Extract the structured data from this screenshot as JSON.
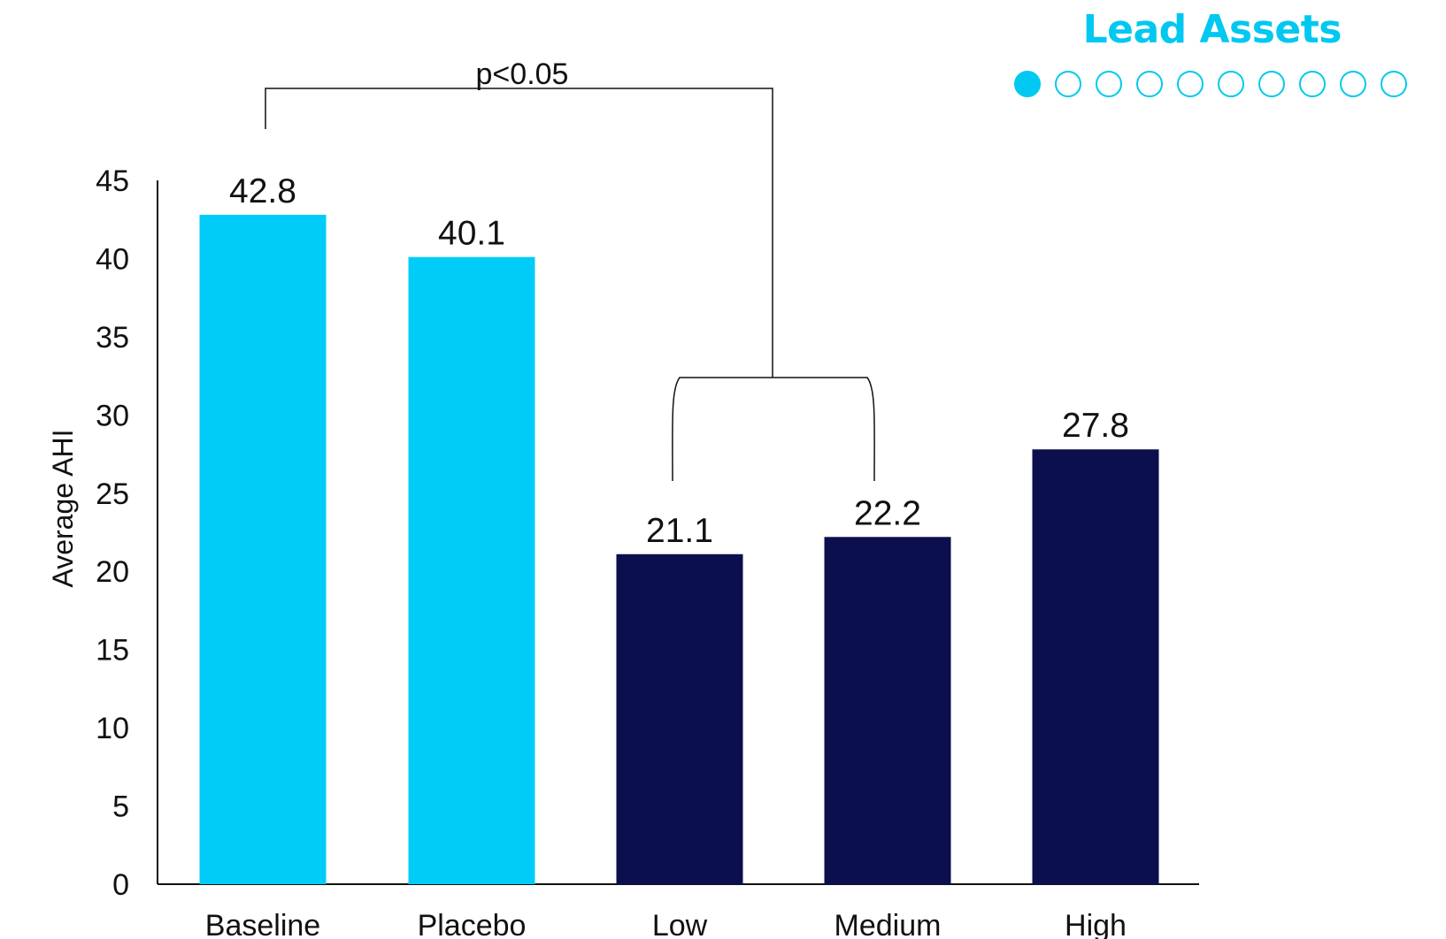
{
  "header": {
    "title": "Lead Assets",
    "pager": {
      "total": 10,
      "active": 1
    }
  },
  "colors": {
    "accent": "#00ccf7",
    "dark": "#0b0f4e",
    "axis": "#111111"
  },
  "chart_data": {
    "type": "bar",
    "categories": [
      "Baseline",
      "Placebo",
      "Low",
      "Medium",
      "High"
    ],
    "values": [
      42.8,
      40.1,
      21.1,
      22.2,
      27.8
    ],
    "value_labels": [
      "42.8",
      "40.1",
      "21.1",
      "22.2",
      "27.8"
    ],
    "bar_colors": [
      "#00ccf7",
      "#00ccf7",
      "#0b0f4e",
      "#0b0f4e",
      "#0b0f4e"
    ],
    "ylabel": "Average AHI",
    "xlabel": "",
    "ylim": [
      0,
      45
    ],
    "yticks": [
      0,
      5,
      10,
      15,
      20,
      25,
      30,
      35,
      40,
      45
    ],
    "grid": false,
    "annotation": {
      "text": "p<0.05",
      "compares": [
        "Baseline",
        [
          "Low",
          "Medium"
        ]
      ]
    }
  }
}
